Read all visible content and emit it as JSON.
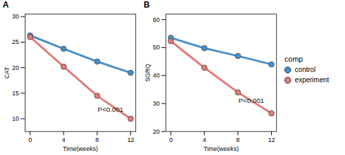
{
  "chart_data": [
    {
      "type": "line",
      "title": "A",
      "x_label": "Time(weeks)",
      "y_label": "CAT",
      "x": [
        0,
        4,
        8,
        12
      ],
      "xlim": [
        -0.6,
        12.6
      ],
      "xticks": [
        0,
        4,
        8,
        12
      ],
      "ylim": [
        7.5,
        30.5
      ],
      "yticks": [
        10,
        15,
        20,
        25,
        30
      ],
      "marker": "circle",
      "series": [
        {
          "name": "control",
          "color": "#4b8fc6",
          "values": [
            26.3,
            23.7,
            21.2,
            19.0
          ]
        },
        {
          "name": "experiment",
          "color": "#e07a78",
          "values": [
            26.0,
            20.2,
            14.5,
            10.0
          ]
        }
      ],
      "annotations": [
        {
          "text": "P<0.001",
          "x": 9.6,
          "y": 11.8
        }
      ]
    },
    {
      "type": "line",
      "title": "B",
      "x_label": "Time(weeks)",
      "y_label": "SGRQ",
      "x": [
        0,
        4,
        8,
        12
      ],
      "xlim": [
        -0.6,
        12.6
      ],
      "xticks": [
        0,
        4,
        8,
        12
      ],
      "ylim": [
        20,
        62
      ],
      "yticks": [
        20,
        30,
        40,
        50,
        60
      ],
      "marker": "circle",
      "legend": "right",
      "legend_title": "comp",
      "series": [
        {
          "name": "control",
          "color": "#4b8fc6",
          "values": [
            53.5,
            49.8,
            47.0,
            44.0
          ]
        },
        {
          "name": "experiment",
          "color": "#e07a78",
          "values": [
            52.3,
            42.8,
            34.0,
            26.5
          ]
        }
      ],
      "annotations": [
        {
          "text": "P<0.001",
          "x": 9.6,
          "y": 31.0
        }
      ]
    }
  ]
}
